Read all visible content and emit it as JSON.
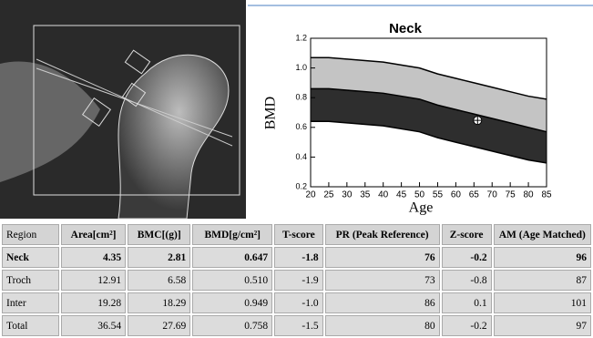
{
  "chart_data": {
    "type": "band",
    "title": "Neck",
    "xlabel": "Age",
    "ylabel": "BMD",
    "x": [
      20,
      25,
      30,
      35,
      40,
      45,
      50,
      55,
      60,
      65,
      70,
      75,
      80,
      85
    ],
    "series": [
      {
        "color": "#c4c4c4",
        "values": [
          1.07,
          1.07,
          1.06,
          1.05,
          1.04,
          1.02,
          1.0,
          0.96,
          0.93,
          0.9,
          0.87,
          0.84,
          0.81,
          0.79
        ]
      },
      {
        "color": "#2e2e2e",
        "values": [
          0.86,
          0.86,
          0.85,
          0.84,
          0.83,
          0.81,
          0.79,
          0.75,
          0.72,
          0.69,
          0.66,
          0.63,
          0.6,
          0.57
        ]
      },
      {
        "color": "#ffffff",
        "values": [
          0.64,
          0.64,
          0.63,
          0.62,
          0.61,
          0.59,
          0.57,
          0.53,
          0.5,
          0.47,
          0.44,
          0.41,
          0.38,
          0.36
        ]
      }
    ],
    "point": {
      "x": 66,
      "y": 0.647
    },
    "xlim": [
      20,
      85
    ],
    "xticks": [
      20,
      25,
      30,
      35,
      40,
      45,
      50,
      55,
      60,
      65,
      70,
      75,
      80,
      85
    ],
    "ylim": [
      0.2,
      1.2
    ],
    "yticks": [
      0.2,
      0.4,
      0.6,
      0.8,
      {
        "value": 1,
        "label": "1.0"
      },
      1.2
    ]
  },
  "table": {
    "header": [
      "Region",
      "Area[cm²]",
      "BMC[(g)]",
      "BMD[g/cm²]",
      "T-score",
      "PR (Peak Reference)",
      "Z-score",
      "AM (Age Matched)"
    ],
    "rows": [
      [
        "Neck",
        "4.35",
        "2.81",
        "0.647",
        "-1.8",
        "76",
        "-0.2",
        "96"
      ],
      [
        "Troch",
        "12.91",
        "6.58",
        "0.510",
        "-1.9",
        "73",
        "-0.8",
        "87"
      ],
      [
        "Inter",
        "19.28",
        "18.29",
        "0.949",
        "-1.0",
        "86",
        "0.1",
        "101"
      ],
      [
        "Total",
        "36.54",
        "27.69",
        "0.758",
        "-1.5",
        "80",
        "-0.2",
        "97"
      ]
    ]
  }
}
